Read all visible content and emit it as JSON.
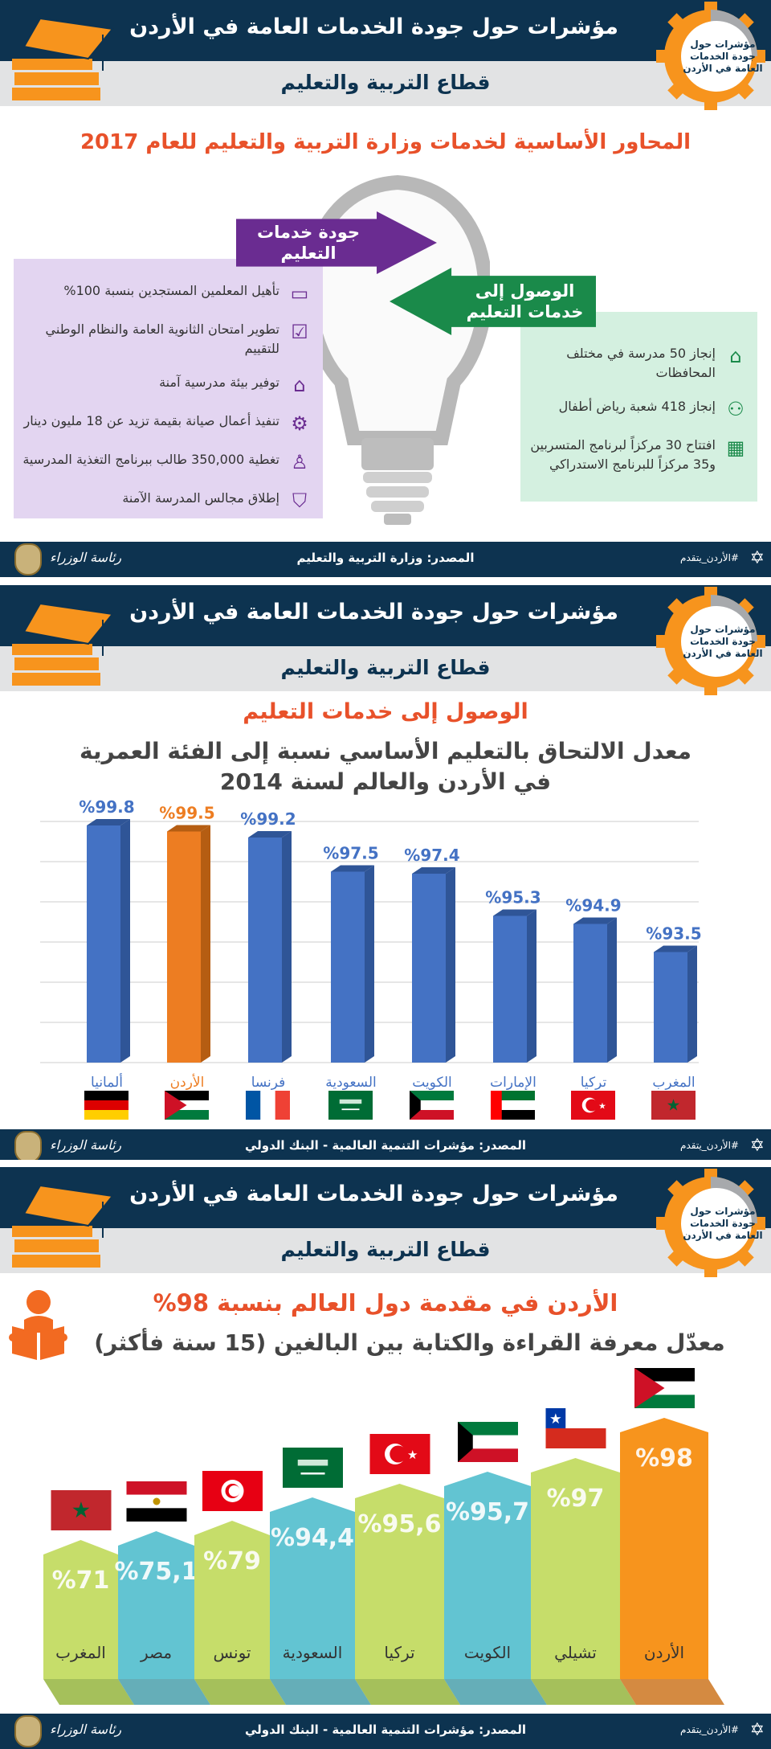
{
  "header": {
    "title": "مؤشرات حول جودة الخدمات العامة في الأردن",
    "sector": "قطاع التربية والتعليم",
    "logo_text": "مؤشرات حول جودة الخدمات العامة في الأردن",
    "logo_icon": "gear-icon",
    "left_icon": "books-graduation-cap-icon"
  },
  "footer": {
    "tagline": "#الأردن_يتقدم",
    "pm_logo_text": "رئاسة الوزراء",
    "sources": [
      "المصدر: وزارة التربية والتعليم",
      "المصدر: مؤشرات التنمية العالمية - البنك الدولي",
      "المصدر: مؤشرات التنمية العالمية - البنك الدولي"
    ]
  },
  "panel1": {
    "title": "المحاور الأساسية لخدمات وزارة التربية والتعليم للعام 2017",
    "quality_arrow": "جودة خدمات التعليم",
    "access_arrow": "الوصول إلى خدمات التعليم",
    "quality_items": [
      {
        "icon": "teacher-board-icon",
        "text": "تأهيل المعلمين المستجدين بنسبة 100%"
      },
      {
        "icon": "exam-checklist-icon",
        "text": "تطوير امتحان الثانوية العامة والنظام الوطني للتقييم"
      },
      {
        "icon": "school-building-icon",
        "text": "توفير بيئة مدرسية آمنة"
      },
      {
        "icon": "maintenance-gear-icon",
        "text": "تنفيذ أعمال صيانة بقيمة تزيد عن 18 مليون دينار"
      },
      {
        "icon": "student-desk-icon",
        "text": "تغطية 350,000 طالب ببرنامج التغذية المدرسية"
      },
      {
        "icon": "shield-check-icon",
        "text": "إطلاق مجالس المدرسة الآمنة"
      }
    ],
    "access_items": [
      {
        "icon": "school-icon",
        "text": "إنجاز 50 مدرسة في مختلف المحافظات"
      },
      {
        "icon": "children-icon",
        "text": "إنجاز 418 شعبة رياض أطفال"
      },
      {
        "icon": "buildings-icon",
        "text": "افتتاح 30 مركزاً لبرنامج المتسربين و35 مركزاً للبرنامج الاستدراكي"
      }
    ]
  },
  "panel2": {
    "heading": "الوصول إلى خدمات التعليم",
    "subtitle_line1": "معدل الالتحاق بالتعليم الأساسي نسبة إلى الفئة العمرية",
    "subtitle_line2": "في الأردن والعالم لسنة 2014"
  },
  "panel3": {
    "heading": "الأردن في مقدمة دول العالم بنسبة 98%",
    "subtitle": "معدّل معرفة القراءة والكتابة بين البالغين (15 سنة فأكثر)",
    "icon": "reading-person-icon"
  },
  "colors": {
    "navy": "#0d3350",
    "orange": "#f7941d",
    "purple": "#6a2c91",
    "green": "#1a8a4a",
    "bar_blue": "#4472c4",
    "bar_highlight": "#ed7d22",
    "col_green": "#c6dd6a",
    "col_blue": "#62c4d2"
  },
  "chart_data": [
    {
      "type": "bar",
      "title": "معدل الالتحاق بالتعليم الأساسي نسبة إلى الفئة العمرية في الأردن والعالم لسنة 2014",
      "categories": [
        "ألمانيا",
        "الأردن",
        "فرنسا",
        "السعودية",
        "الكويت",
        "الإمارات",
        "تركيا",
        "المغرب"
      ],
      "flags": [
        "de",
        "jo",
        "fr",
        "sa",
        "kw",
        "ae",
        "tr",
        "ma"
      ],
      "values": [
        99.8,
        99.5,
        99.2,
        97.5,
        97.4,
        95.3,
        94.9,
        93.5
      ],
      "labels": [
        "%99.8",
        "%99.5",
        "%99.2",
        "%97.5",
        "%97.4",
        "%95.3",
        "%94.9",
        "%93.5"
      ],
      "highlight": "الأردن",
      "grid": true,
      "ylim": [
        88,
        100
      ]
    },
    {
      "type": "bar",
      "title": "معدّل معرفة القراءة والكتابة بين البالغين (15 سنة فأكثر)",
      "categories": [
        "المغرب",
        "مصر",
        "تونس",
        "السعودية",
        "تركيا",
        "الكويت",
        "تشيلي",
        "الأردن"
      ],
      "flags": [
        "ma",
        "eg",
        "tn",
        "sa",
        "tr",
        "kw",
        "cl",
        "jo"
      ],
      "values": [
        71,
        75.1,
        79,
        94.4,
        95.6,
        95.7,
        97,
        98
      ],
      "labels": [
        "%71",
        "%75,1",
        "%79",
        "%94,4",
        "%95,6",
        "%95,7",
        "%97",
        "%98"
      ],
      "highlight": "الأردن",
      "grid": false
    }
  ]
}
